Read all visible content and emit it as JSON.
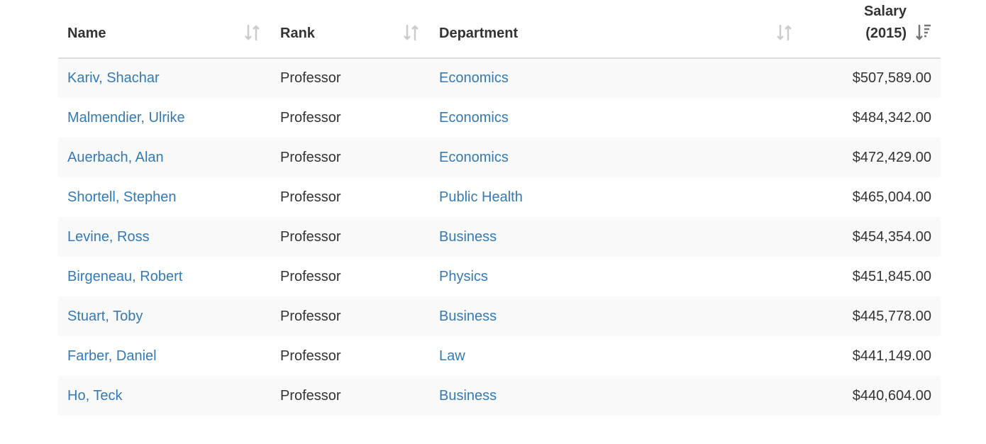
{
  "table": {
    "columns": [
      "Name",
      "Rank",
      "Department",
      "Salary (2015)"
    ],
    "rows": [
      [
        "Kariv, Shachar",
        "Professor",
        "Economics",
        "$507,589.00"
      ],
      [
        "Malmendier, Ulrike",
        "Professor",
        "Economics",
        "$484,342.00"
      ],
      [
        "Auerbach, Alan",
        "Professor",
        "Economics",
        "$472,429.00"
      ],
      [
        "Shortell, Stephen",
        "Professor",
        "Public Health",
        "$465,004.00"
      ],
      [
        "Levine, Ross",
        "Professor",
        "Business",
        "$454,354.00"
      ],
      [
        "Birgeneau, Robert",
        "Professor",
        "Physics",
        "$451,845.00"
      ],
      [
        "Stuart, Toby",
        "Professor",
        "Business",
        "$445,778.00"
      ],
      [
        "Farber, Daniel",
        "Professor",
        "Law",
        "$441,149.00"
      ],
      [
        "Ho, Teck",
        "Professor",
        "Business",
        "$440,604.00"
      ]
    ]
  }
}
